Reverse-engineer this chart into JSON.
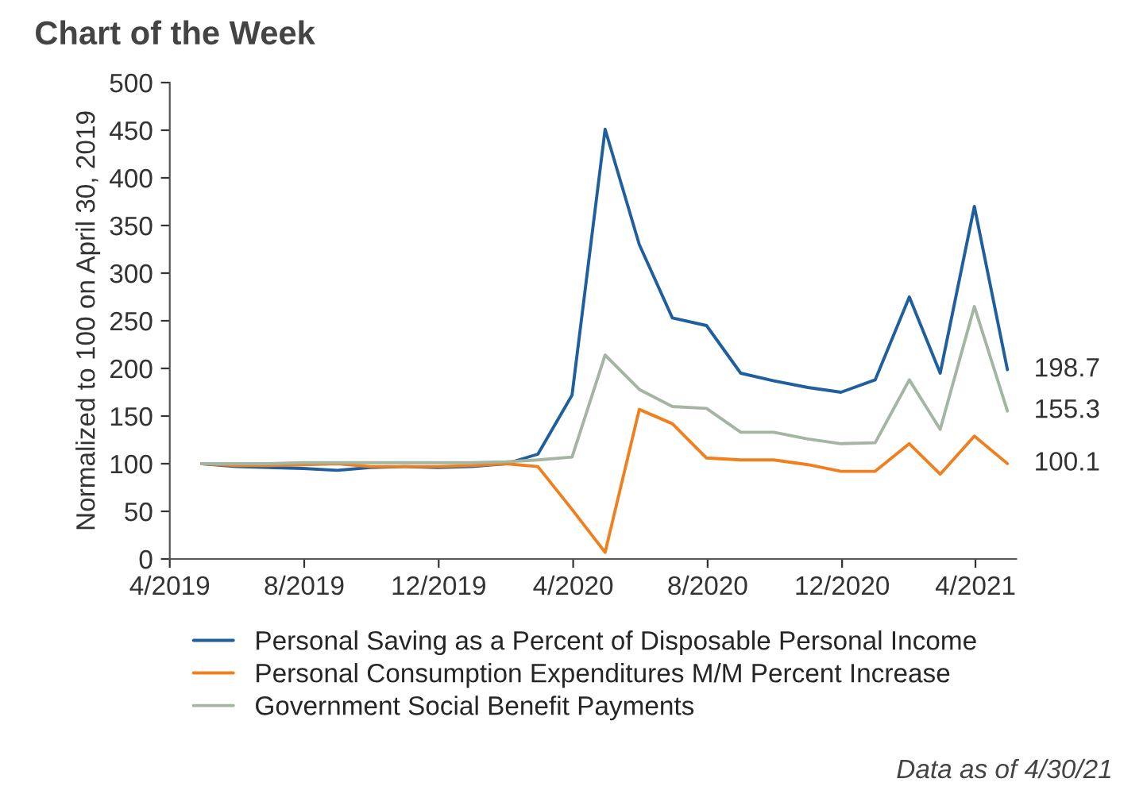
{
  "chart_data": {
    "type": "line",
    "title": "Chart of the Week",
    "ylabel": "Normalized to 100 on April 30, 2019",
    "x": [
      "2019-04-30",
      "2019-05-31",
      "2019-06-30",
      "2019-07-31",
      "2019-08-31",
      "2019-09-30",
      "2019-10-31",
      "2019-11-30",
      "2019-12-31",
      "2020-01-31",
      "2020-02-29",
      "2020-03-31",
      "2020-04-30",
      "2020-05-31",
      "2020-06-30",
      "2020-07-31",
      "2020-08-31",
      "2020-09-30",
      "2020-10-31",
      "2020-11-30",
      "2020-12-31",
      "2021-01-31",
      "2021-02-28",
      "2021-03-31",
      "2021-04-30"
    ],
    "series": [
      {
        "name": "Personal Saving as a Percent of Disposable Personal Income",
        "color": "#1f5f9e",
        "values": [
          100,
          97,
          96,
          95,
          93,
          96,
          97,
          96,
          97,
          100,
          110,
          172,
          451,
          330,
          253,
          245,
          195,
          187,
          180,
          175,
          188,
          275,
          195,
          370,
          198.7
        ]
      },
      {
        "name": "Personal Consumption Expenditures M/M Percent Increase",
        "color": "#f07f1e",
        "values": [
          100,
          98,
          98,
          99,
          100,
          97,
          97,
          97,
          98,
          100,
          97,
          52,
          7,
          157,
          142,
          106,
          104,
          104,
          99,
          92,
          92,
          121,
          89,
          129,
          100.1
        ]
      },
      {
        "name": "Government Social Benefit Payments",
        "color": "#a3b5a3",
        "values": [
          100,
          100,
          100,
          101,
          101,
          101,
          101,
          101,
          101,
          102,
          104,
          107,
          214,
          178,
          160,
          158,
          133,
          133,
          126,
          121,
          122,
          188,
          136,
          265,
          155.3
        ]
      }
    ],
    "xlim": [
      "2019-04-01",
      "2021-05-08"
    ],
    "xticks": [
      {
        "value": "2019-04-01",
        "label": "4/2019"
      },
      {
        "value": "2019-08-01",
        "label": "8/2019"
      },
      {
        "value": "2019-12-01",
        "label": "12/2019"
      },
      {
        "value": "2020-04-01",
        "label": "4/2020"
      },
      {
        "value": "2020-08-01",
        "label": "8/2020"
      },
      {
        "value": "2020-12-01",
        "label": "12/2020"
      },
      {
        "value": "2021-04-01",
        "label": "4/2021"
      }
    ],
    "ylim": [
      0,
      500
    ],
    "yticks": [
      0,
      50,
      100,
      150,
      200,
      250,
      300,
      350,
      400,
      450,
      500
    ],
    "grid": false,
    "legend": "bottom",
    "annotations": [
      {
        "text": "198.7",
        "x": "2021-04-30",
        "y": 198.7
      },
      {
        "text": "155.3",
        "x": "2021-04-30",
        "y": 155.3
      },
      {
        "text": "100.1",
        "x": "2021-04-30",
        "y": 100.1
      },
      "Data as of 4/30/21"
    ]
  }
}
